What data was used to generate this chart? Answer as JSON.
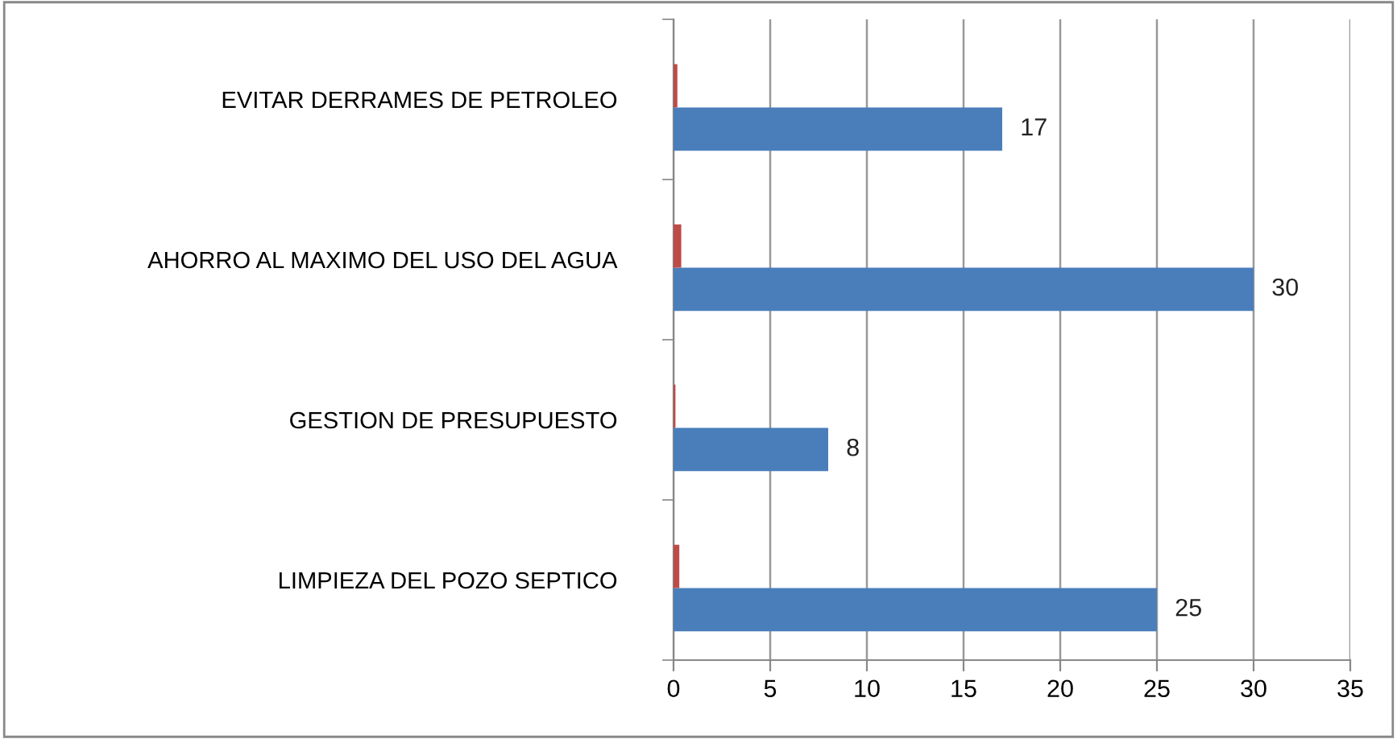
{
  "chart_data": {
    "type": "bar",
    "orientation": "horizontal",
    "categories": [
      "EVITAR DERRAMES DE PETROLEO",
      "AHORRO AL MAXIMO DEL USO DEL AGUA",
      "GESTION DE PRESUPUESTO",
      "LIMPIEZA DEL POZO SEPTICO"
    ],
    "series": [
      {
        "color": "#4a7ebb",
        "values": [
          17,
          30,
          8,
          25
        ],
        "value_labels": [
          "17",
          "30",
          "8",
          "25"
        ]
      },
      {
        "color": "#be4b48",
        "values": [
          0.2,
          0.4,
          0.1,
          0.3
        ]
      }
    ],
    "xlim": [
      0,
      35
    ],
    "xticks": [
      0,
      5,
      10,
      15,
      20,
      25,
      30,
      35
    ],
    "grid": "x",
    "legend": false
  }
}
